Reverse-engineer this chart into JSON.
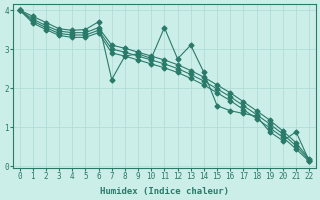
{
  "xlabel": "Humidex (Indice chaleur)",
  "ylabel": "",
  "bg_color": "#cceee8",
  "grid_color": "#b0ddd8",
  "line_color": "#2a7a6a",
  "xlim": [
    -0.5,
    22.5
  ],
  "ylim": [
    -0.05,
    4.15
  ],
  "yticks": [
    0,
    1,
    2,
    3,
    4
  ],
  "xticks": [
    0,
    1,
    2,
    3,
    4,
    5,
    6,
    7,
    8,
    9,
    10,
    11,
    12,
    13,
    14,
    15,
    16,
    17,
    18,
    19,
    20,
    21,
    22
  ],
  "series": [
    [
      4.0,
      3.84,
      3.68,
      3.52,
      3.48,
      3.5,
      3.7,
      2.22,
      2.82,
      2.88,
      2.76,
      3.55,
      2.75,
      3.1,
      2.4,
      1.55,
      1.42,
      1.35,
      1.28,
      0.88,
      0.65,
      0.88,
      0.13
    ],
    [
      4.0,
      3.77,
      3.6,
      3.46,
      3.42,
      3.42,
      3.55,
      3.1,
      3.02,
      2.92,
      2.82,
      2.72,
      2.6,
      2.45,
      2.28,
      2.08,
      1.88,
      1.65,
      1.42,
      1.18,
      0.9,
      0.6,
      0.18
    ],
    [
      4.0,
      3.72,
      3.55,
      3.4,
      3.36,
      3.36,
      3.48,
      3.0,
      2.92,
      2.82,
      2.72,
      2.62,
      2.5,
      2.35,
      2.18,
      1.98,
      1.78,
      1.55,
      1.32,
      1.08,
      0.82,
      0.52,
      0.15
    ],
    [
      4.0,
      3.67,
      3.5,
      3.35,
      3.3,
      3.3,
      3.42,
      2.9,
      2.82,
      2.72,
      2.62,
      2.52,
      2.4,
      2.25,
      2.08,
      1.88,
      1.68,
      1.45,
      1.22,
      0.98,
      0.74,
      0.44,
      0.12
    ]
  ],
  "marker": "D",
  "markersize": 2.5,
  "linewidth": 0.8
}
